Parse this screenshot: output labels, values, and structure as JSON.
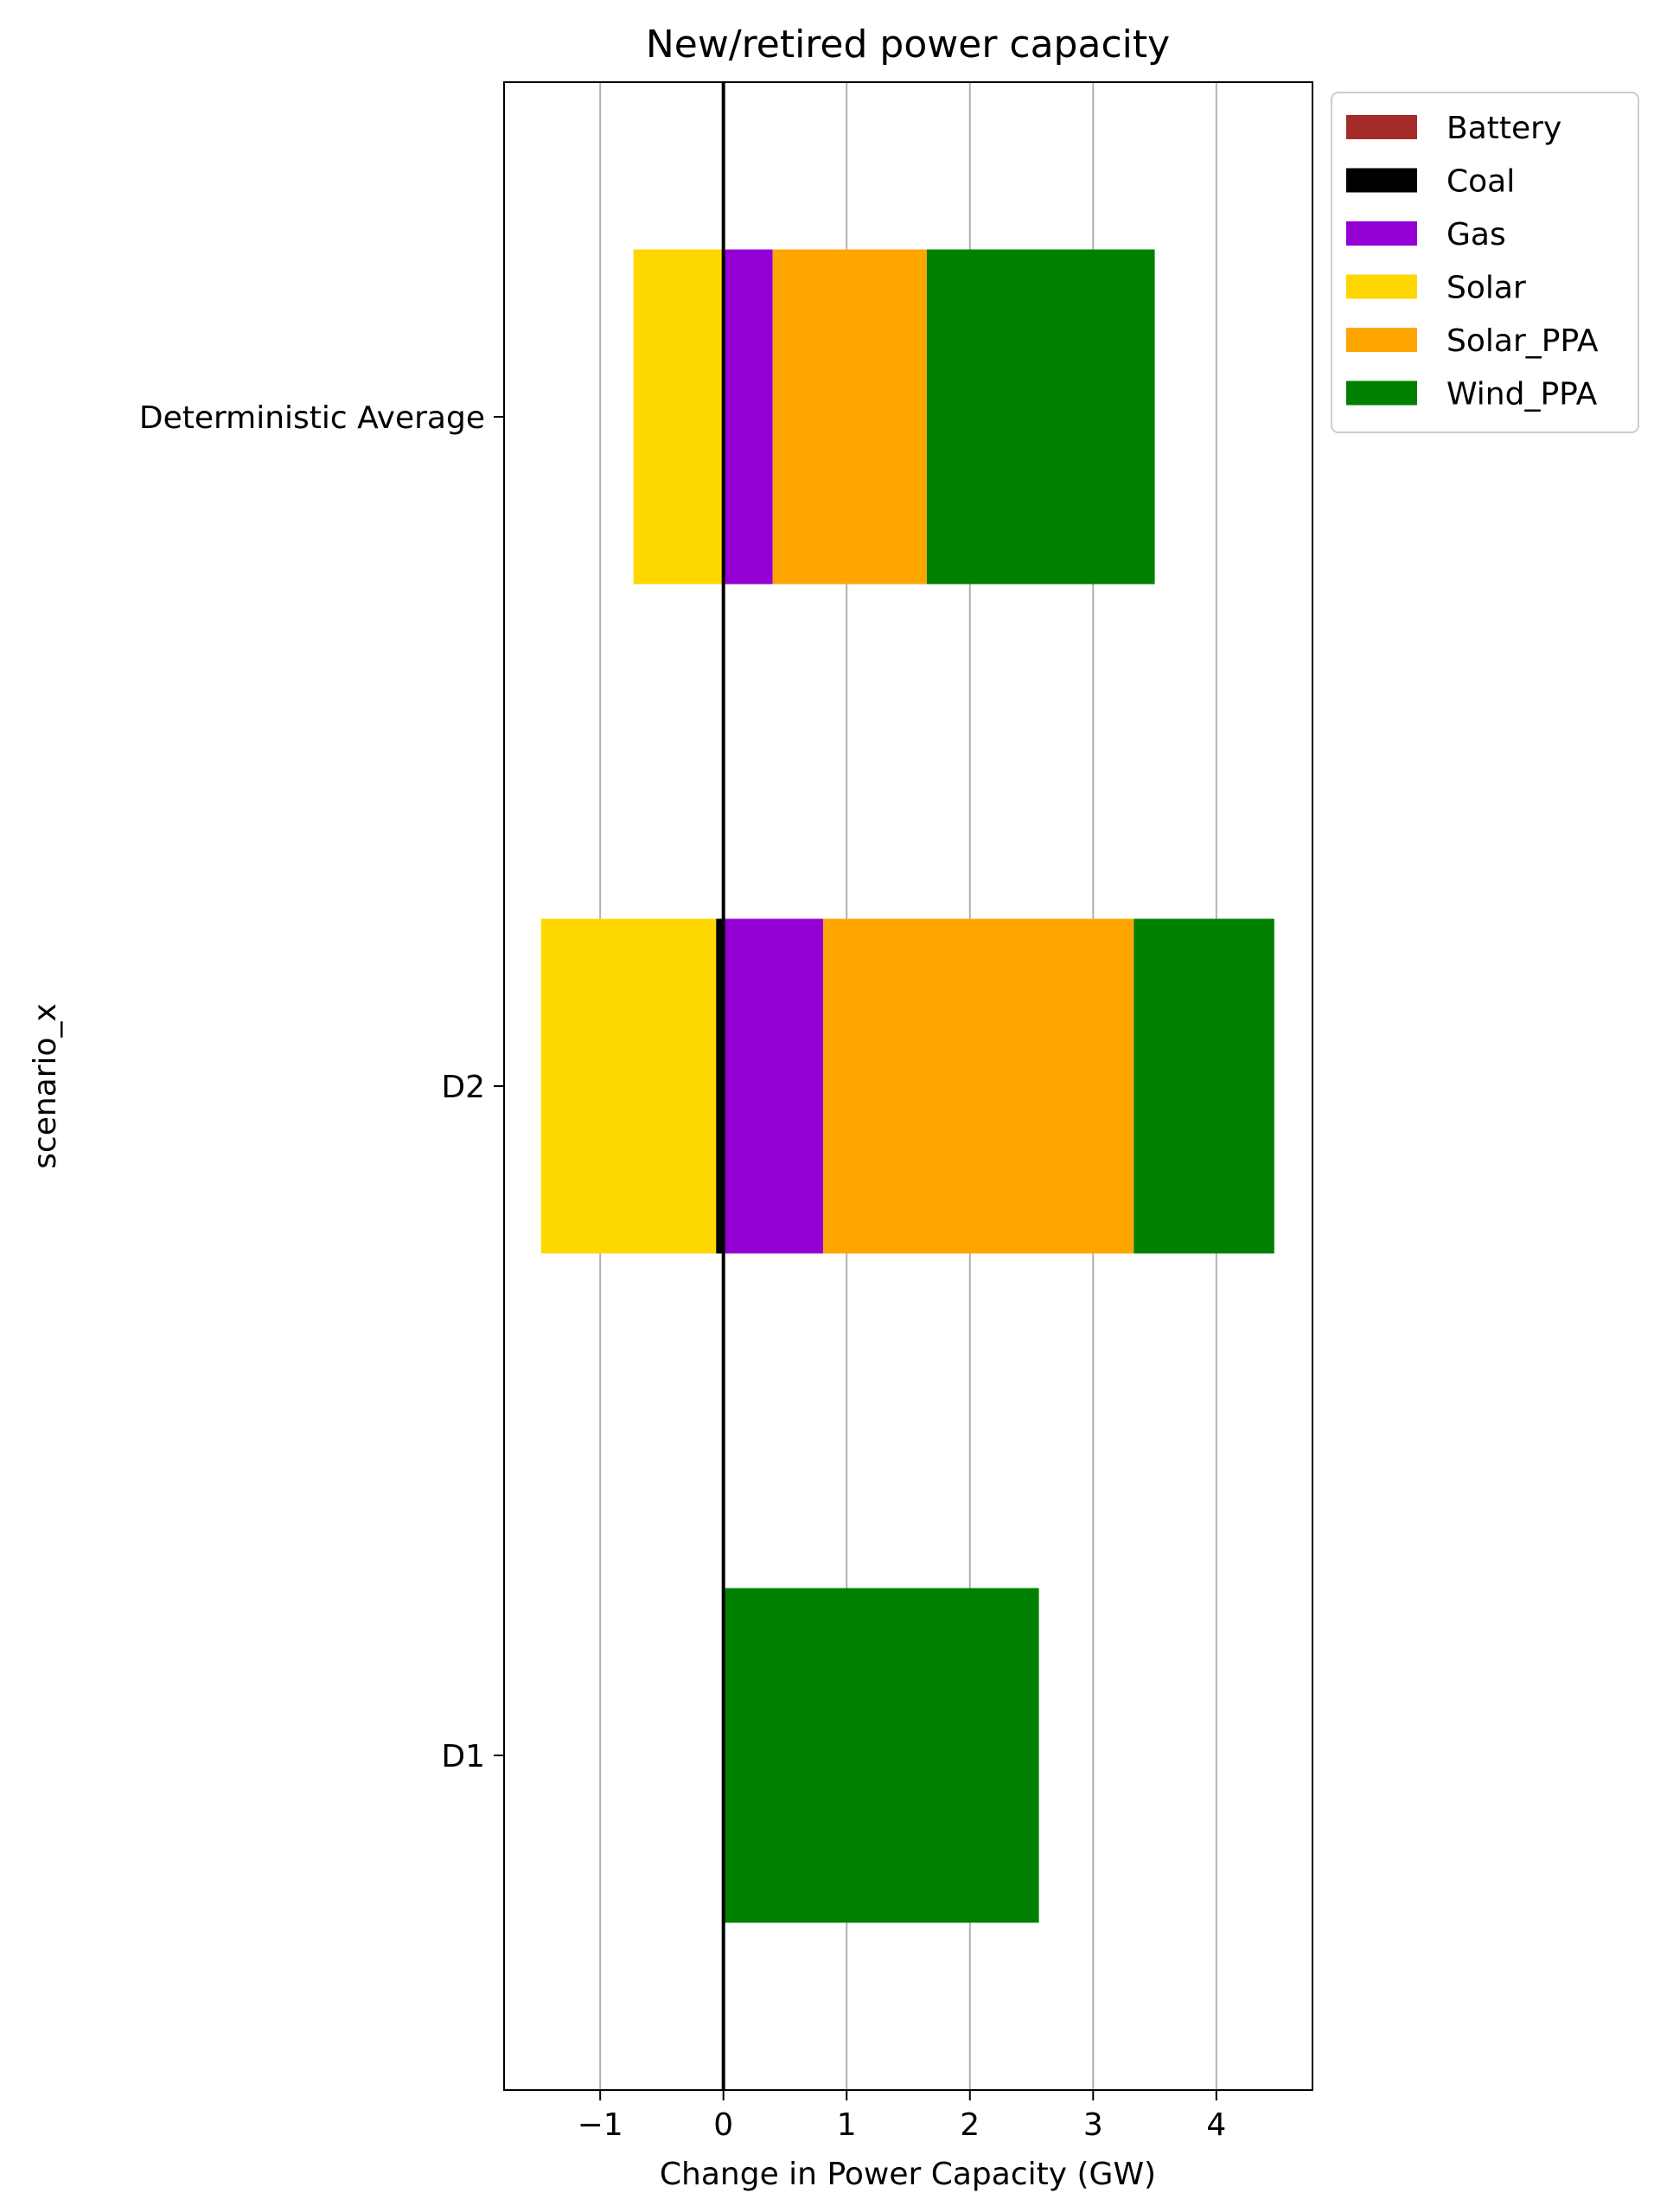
{
  "chart_data": {
    "type": "bar",
    "orientation": "horizontal",
    "stacked": true,
    "title": "New/retired power capacity",
    "xlabel": "Change in Power Capacity (GW)",
    "ylabel": "scenario_x",
    "xlim": [
      -1.78,
      4.78
    ],
    "xticks": [
      {
        "value": -1,
        "label": "−1"
      },
      {
        "value": 0,
        "label": "0"
      },
      {
        "value": 1,
        "label": "1"
      },
      {
        "value": 2,
        "label": "2"
      },
      {
        "value": 3,
        "label": "3"
      },
      {
        "value": 4,
        "label": "4"
      }
    ],
    "categories": [
      "D1",
      "D2",
      "Deterministic Average"
    ],
    "grid": "x",
    "zero_line": true,
    "legend_position": "outside upper right",
    "series": [
      {
        "name": "Battery",
        "color": "#a52a2a",
        "values": [
          0,
          0,
          0
        ]
      },
      {
        "name": "Coal",
        "color": "#000000",
        "values": [
          0,
          -0.06,
          0
        ]
      },
      {
        "name": "Gas",
        "color": "#9400d3",
        "values": [
          0,
          0.81,
          0.4
        ]
      },
      {
        "name": "Solar",
        "color": "#ffd700",
        "values": [
          0,
          -1.42,
          -0.73
        ]
      },
      {
        "name": "Solar_PPA",
        "color": "#ffa500",
        "values": [
          0,
          2.52,
          1.25
        ]
      },
      {
        "name": "Wind_PPA",
        "color": "#008000",
        "values": [
          2.56,
          1.14,
          1.85
        ]
      }
    ]
  }
}
